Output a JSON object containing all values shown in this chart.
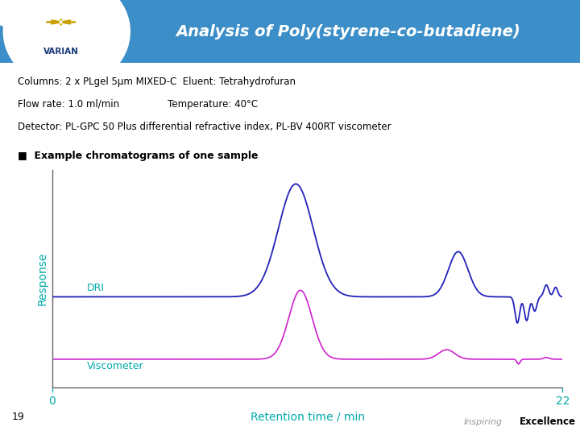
{
  "title": "Analysis of Poly(styrene-co-butadiene)",
  "title_color": "white",
  "header_bg_color": "#3B8EC8",
  "info_line1": "Columns: 2 x PLgel 5µm MIXED-C  Eluent: Tetrahydrofuran",
  "info_line2": "Flow rate: 1.0 ml/min                Temperature: 40°C",
  "info_line3": "Detector: PL-GPC 50 Plus differential refractive index, PL-BV 400RT viscometer",
  "bullet_text": "Example chromatograms of one sample",
  "xlabel": "Retention time / min",
  "ylabel": "Response",
  "xlabel_color": "#00AAAA",
  "ylabel_color": "#00AAAA",
  "tick_color": "#00AAAA",
  "axis_color": "#666666",
  "xlim": [
    0,
    22
  ],
  "x_ticks": [
    0,
    22
  ],
  "dri_color": "#2222BB",
  "viscometer_color": "#CC22CC",
  "dri_label": "DRI",
  "viscometer_label": "Viscometer",
  "label_color": "#00AAAA",
  "bg_color": "white",
  "footer_number": "19",
  "inspiring_color": "#999999",
  "excellence_color": "#000000",
  "varian_color": "#1A3A7A",
  "logo_color": "#C8A000"
}
